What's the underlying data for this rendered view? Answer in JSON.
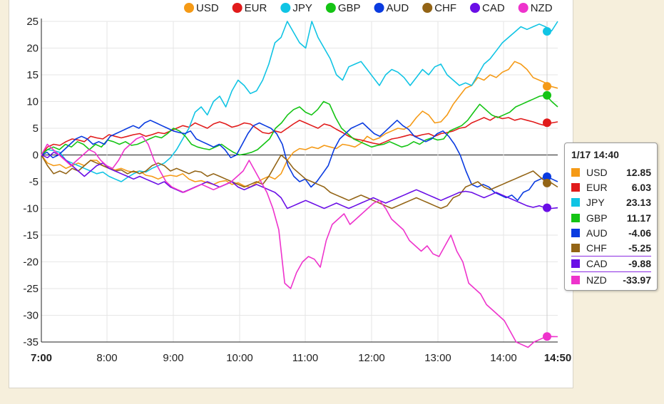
{
  "chart_data": {
    "type": "line",
    "x_ticks": [
      "7:00",
      "8:00",
      "9:00",
      "10:00",
      "11:00",
      "12:00",
      "13:00",
      "14:00",
      "14:50"
    ],
    "y_ticks": [
      25,
      20,
      15,
      10,
      5,
      0,
      -5,
      -10,
      -15,
      -20,
      -25,
      -30,
      -35
    ],
    "ylim": [
      -36,
      25.5
    ],
    "x_range_minutes": [
      0,
      470
    ],
    "grid": true,
    "legend_position": "top",
    "series": [
      {
        "name": "USD",
        "color": "#f59a16",
        "values": [
          0,
          -1.5,
          -2,
          -1.8,
          -2.5,
          -2,
          -1.5,
          -2,
          -1,
          -1,
          -2,
          -2.5,
          -2.8,
          -2.5,
          -3,
          -3.2,
          -3,
          -3.8,
          -4,
          -4.5,
          -4,
          -3.8,
          -4,
          -3.5,
          -4.5,
          -5,
          -4.8,
          -5.2,
          -5.5,
          -5,
          -4.8,
          -5.5,
          -5.2,
          -5.8,
          -6,
          -5.2,
          -4.5,
          -4,
          -4.5,
          -3.5,
          -1,
          0.5,
          1.2,
          1,
          1.5,
          1.2,
          1.8,
          1.5,
          1.2,
          2,
          1.8,
          1.5,
          2.2,
          3.5,
          2.8,
          3.2,
          4,
          4.5,
          5,
          4.8,
          5.5,
          7,
          8.2,
          7.5,
          6,
          6.2,
          7.5,
          9.5,
          11,
          12.5,
          13,
          14.5,
          14,
          15,
          14.5,
          15.5,
          16,
          17.5,
          17,
          16,
          14.5,
          14,
          13.5,
          12.8,
          12.5
        ]
      },
      {
        "name": "EUR",
        "color": "#e11b1b",
        "values": [
          0,
          1.5,
          2,
          1.8,
          2.5,
          3,
          2.8,
          2.5,
          3.5,
          3.2,
          3,
          3.8,
          3.5,
          3.2,
          3.5,
          3.8,
          4,
          3.5,
          3.8,
          4.2,
          4,
          4.5,
          5,
          5.5,
          5.2,
          6,
          5.5,
          5,
          5.8,
          6.2,
          5.8,
          5.2,
          5.5,
          6,
          5.8,
          5,
          4.2,
          4,
          4.5,
          4.2,
          5,
          5.8,
          6.5,
          6,
          5.5,
          5,
          5.8,
          5.5,
          4.8,
          4.2,
          3.5,
          3,
          2.8,
          2.5,
          2.2,
          2,
          2.5,
          3,
          3.2,
          3.5,
          3.8,
          3.5,
          3.8,
          4,
          3.5,
          4,
          4.2,
          4.5,
          5,
          5.2,
          6,
          6.5,
          7,
          6.5,
          7.2,
          6.8,
          7,
          6.5,
          6.8,
          6.5,
          6.2,
          5.8,
          5.5,
          6,
          6.2
        ]
      },
      {
        "name": "JPY",
        "color": "#10c4e4",
        "values": [
          0,
          1,
          0.8,
          0.5,
          -1,
          -1.5,
          -2,
          -2.5,
          -3,
          -3.5,
          -3.2,
          -4,
          -4.5,
          -5,
          -4.2,
          -3.5,
          -3,
          -3.2,
          -2.5,
          -2,
          -1.5,
          -0.5,
          1,
          3,
          5,
          8,
          9,
          7.5,
          10,
          11,
          9,
          12,
          14,
          13,
          11.5,
          12,
          14,
          17,
          21,
          22,
          25,
          23,
          21,
          20,
          25,
          22,
          20,
          18,
          15,
          14,
          16.5,
          17,
          17.5,
          16,
          14.5,
          13,
          15,
          16,
          15.5,
          14.5,
          13,
          14.5,
          16,
          15,
          16.5,
          17,
          15,
          14,
          13,
          13.5,
          13,
          15,
          17,
          18,
          19.5,
          21,
          22,
          23,
          24,
          23.5,
          24,
          24.5,
          24,
          23.2,
          25
        ]
      },
      {
        "name": "GBP",
        "color": "#14c414",
        "values": [
          0,
          1,
          1.5,
          1,
          2,
          1.5,
          2.5,
          2,
          1,
          2,
          1.5,
          2.8,
          2.5,
          2,
          2.5,
          1.8,
          2,
          2.5,
          3,
          3.5,
          3.2,
          4,
          5,
          4.5,
          3.5,
          2,
          1.5,
          1.2,
          1,
          1.5,
          2,
          1.2,
          0.5,
          0,
          0.2,
          0.5,
          1,
          2,
          3,
          5,
          6,
          7.5,
          8.5,
          9,
          8,
          7.5,
          8.5,
          10,
          9.5,
          7,
          5,
          4,
          3,
          2.5,
          2,
          1.5,
          1.8,
          2,
          2.5,
          2,
          1.5,
          1.8,
          2.5,
          2,
          2.8,
          3.2,
          2.8,
          3,
          4.5,
          5,
          5.5,
          6.5,
          8,
          9.5,
          8.5,
          7.5,
          7,
          7.5,
          8,
          9,
          9.5,
          10,
          10.5,
          11,
          11.2,
          10,
          9
        ]
      },
      {
        "name": "AUD",
        "color": "#0a3be0",
        "values": [
          0,
          0.5,
          -0.5,
          0,
          1,
          2,
          3,
          3.5,
          3,
          2,
          2.5,
          2,
          3.5,
          4,
          4.5,
          5,
          5.5,
          5,
          6,
          6.5,
          6,
          5.5,
          5,
          4.5,
          4.2,
          4,
          4.5,
          3,
          2.5,
          2,
          1.5,
          2,
          1,
          -0.5,
          0,
          2,
          4,
          5.5,
          6,
          5.5,
          5,
          4,
          2,
          -2,
          -4,
          -5,
          -4.5,
          -6,
          -5,
          -3.5,
          -2,
          1,
          3,
          4,
          5,
          5.5,
          6,
          5,
          4,
          3.5,
          4.5,
          5.5,
          6.5,
          5.5,
          4.8,
          3.5,
          3,
          2.5,
          3,
          4,
          4.5,
          3.5,
          2,
          0,
          -3,
          -5.5,
          -6,
          -5.5,
          -6,
          -7,
          -7.5,
          -8,
          -7.5,
          -8.5,
          -7,
          -6.5,
          -5,
          -4.5,
          -4,
          -4.5,
          -5
        ]
      },
      {
        "name": "CHF",
        "color": "#936415",
        "values": [
          0,
          -2,
          -3.5,
          -3,
          -3.5,
          -2.5,
          -3,
          -2,
          -1,
          -1.5,
          -2,
          -2.5,
          -3,
          -2.8,
          -3.5,
          -3,
          -3.5,
          -3,
          -2,
          -1.5,
          -2,
          -3,
          -2.5,
          -3,
          -3.5,
          -3,
          -3.2,
          -4,
          -3.5,
          -4,
          -4.5,
          -5,
          -5.5,
          -6,
          -5.5,
          -5,
          -5.5,
          -4,
          -2,
          0,
          -1,
          -2.5,
          -3.5,
          -4.5,
          -5,
          -5.5,
          -6,
          -7,
          -7.5,
          -8,
          -8.5,
          -8,
          -7.5,
          -8,
          -8.5,
          -9,
          -9.5,
          -10,
          -9.5,
          -9,
          -8.5,
          -8,
          -8.5,
          -9,
          -9.5,
          -10,
          -9.5,
          -8,
          -7.5,
          -6,
          -5.5,
          -5,
          -6,
          -6.5,
          -6,
          -5.5,
          -5,
          -4.5,
          -4,
          -3.5,
          -3,
          -4,
          -5,
          -5.25,
          -6
        ]
      },
      {
        "name": "CAD",
        "color": "#6a0ee6",
        "values": [
          0,
          -0.5,
          0.5,
          0,
          -1,
          -2,
          -3,
          -4,
          -3,
          -2,
          -1.5,
          -2.5,
          -3,
          -3.5,
          -4,
          -4.5,
          -4,
          -4.5,
          -5,
          -5.5,
          -5,
          -6,
          -6.5,
          -7,
          -6.5,
          -6,
          -5.5,
          -5,
          -5.5,
          -6,
          -5.5,
          -5,
          -6,
          -6.5,
          -6,
          -5.5,
          -6,
          -6.5,
          -7,
          -8,
          -10,
          -9.5,
          -9,
          -8.5,
          -9,
          -9.5,
          -10,
          -9.5,
          -9,
          -9.5,
          -10,
          -9.5,
          -9,
          -8.5,
          -8,
          -8.5,
          -9,
          -8.5,
          -8,
          -7.5,
          -7,
          -6.5,
          -7,
          -7.5,
          -8,
          -8.5,
          -8,
          -7.5,
          -7,
          -6.8,
          -7,
          -7.5,
          -8,
          -7.5,
          -7,
          -7.5,
          -8,
          -8.5,
          -9,
          -9.5,
          -9.8,
          -9.5,
          -9.9,
          -10,
          -9.88
        ]
      },
      {
        "name": "NZD",
        "color": "#ee33cc",
        "values": [
          0,
          2,
          1,
          0,
          -1,
          -2,
          -1,
          0,
          1,
          0.5,
          -1,
          -2,
          -2.5,
          -1,
          1,
          2,
          3,
          3.5,
          2,
          -1,
          -3,
          -5,
          -6,
          -6.5,
          -7,
          -6.5,
          -6,
          -5.5,
          -6,
          -6.5,
          -6,
          -5.5,
          -5,
          -4,
          -3,
          -1,
          -3,
          -5,
          -7,
          -10,
          -14,
          -24,
          -25,
          -22,
          -20,
          -19,
          -19.5,
          -21,
          -16,
          -13,
          -12,
          -11,
          -13,
          -12,
          -11,
          -10,
          -9,
          -8.5,
          -10,
          -12,
          -13,
          -14,
          -16,
          -17,
          -18,
          -17,
          -18.5,
          -19,
          -17,
          -15,
          -18,
          -20,
          -24,
          -25,
          -26,
          -28,
          -29,
          -30,
          -31,
          -33,
          -35,
          -35.5,
          -36,
          -35,
          -34.5,
          -34,
          -33.97,
          -34
        ]
      }
    ],
    "tooltip": {
      "title": "1/17 14:40",
      "rows": [
        {
          "name": "USD",
          "value": "12.85"
        },
        {
          "name": "EUR",
          "value": "6.03"
        },
        {
          "name": "JPY",
          "value": "23.13"
        },
        {
          "name": "GBP",
          "value": "11.17"
        },
        {
          "name": "AUD",
          "value": "-4.06"
        },
        {
          "name": "CHF",
          "value": "-5.25"
        },
        {
          "name": "CAD",
          "value": "-9.88"
        },
        {
          "name": "NZD",
          "value": "-33.97"
        }
      ]
    }
  }
}
